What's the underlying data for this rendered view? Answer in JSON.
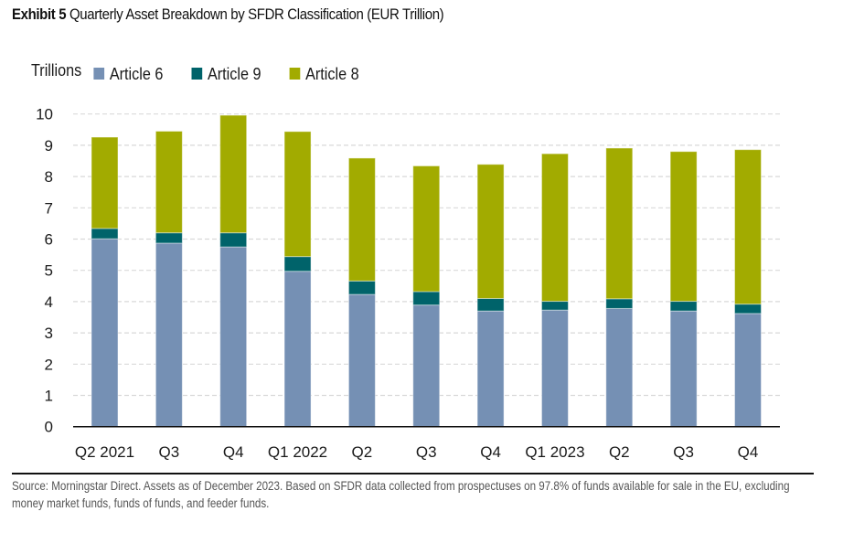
{
  "header": {
    "exhibit_label": "Exhibit 5",
    "title": "Quarterly Asset Breakdown by SFDR Classification (EUR Trillion)"
  },
  "legend": {
    "unit_label": "Trillions",
    "items": [
      {
        "label": "Article 6",
        "color": "#7590b4"
      },
      {
        "label": "Article 9",
        "color": "#00636a"
      },
      {
        "label": "Article 8",
        "color": "#a2ab00"
      }
    ]
  },
  "footer": {
    "source_text": "Source: Morningstar Direct. Assets as of December 2023. Based on SFDR data collected from prospectuses on 97.8% of funds available for sale in the EU, excluding money market funds, funds of funds, and feeder funds."
  },
  "chart_data": {
    "type": "bar",
    "stacked": true,
    "title": "Quarterly Asset Breakdown by SFDR Classification (EUR Trillion)",
    "xlabel": "",
    "ylabel": "Trillions",
    "ylim": [
      0,
      10
    ],
    "yticks": [
      0,
      1,
      2,
      3,
      4,
      5,
      6,
      7,
      8,
      9,
      10
    ],
    "grid": "horizontal-dashed",
    "legend_position": "top-left",
    "categories": [
      "Q2 2021",
      "Q3",
      "Q4",
      "Q1 2022",
      "Q2",
      "Q3",
      "Q4",
      "Q1 2023",
      "Q2",
      "Q3",
      "Q4"
    ],
    "series": [
      {
        "name": "Article 6",
        "color": "#7590b4",
        "values": [
          6.01,
          5.87,
          5.75,
          4.97,
          4.23,
          3.89,
          3.7,
          3.73,
          3.78,
          3.7,
          3.62
        ]
      },
      {
        "name": "Article 9",
        "color": "#00636a",
        "values": [
          0.33,
          0.33,
          0.45,
          0.47,
          0.43,
          0.43,
          0.4,
          0.28,
          0.31,
          0.31,
          0.3
        ]
      },
      {
        "name": "Article 8",
        "color": "#a2ab00",
        "values": [
          2.92,
          3.25,
          3.76,
          4.0,
          3.93,
          4.02,
          4.29,
          4.72,
          4.82,
          4.79,
          4.94
        ]
      }
    ]
  }
}
